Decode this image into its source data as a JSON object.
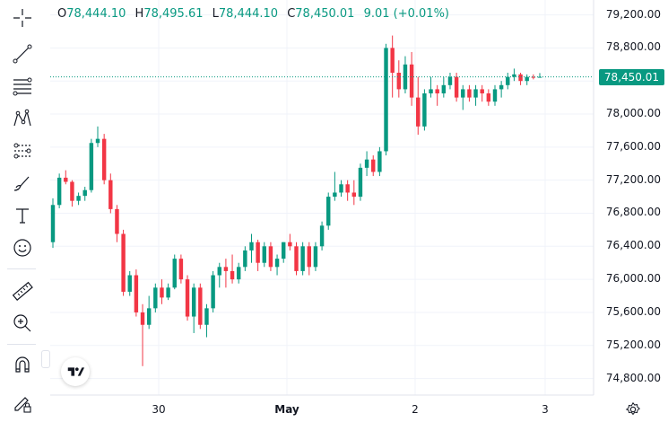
{
  "ohlc": {
    "o_key": "O",
    "o_val": "78,444.10",
    "h_key": "H",
    "h_val": "78,495.61",
    "l_key": "L",
    "l_val": "78,444.10",
    "c_key": "C",
    "c_val": "78,450.01",
    "change": "9.01 (+0.01%)"
  },
  "colors": {
    "up": "#089981",
    "down": "#f23645",
    "grid": "#f0f3fa"
  },
  "toolbar": [
    "crosshair-icon",
    "trend-line-icon",
    "fib-retracement-icon",
    "pattern-icon",
    "forecast-icon",
    "brush-icon",
    "text-icon",
    "emoji-icon",
    "ruler-icon",
    "zoom-in-icon",
    "magnet-icon",
    "lock-draw-icon"
  ],
  "last_price": "78,450.01",
  "chart_data": {
    "type": "candlestick",
    "y_ticks": [
      79200,
      78800,
      78400,
      78000,
      77600,
      77200,
      76800,
      76400,
      76000,
      75600,
      75200,
      74800
    ],
    "y_tick_labels": [
      "79,200.00",
      "78,800.00",
      "78,400.00",
      "78,000.00",
      "77,600.00",
      "77,200.00",
      "76,800.00",
      "76,400.00",
      "76,000.00",
      "75,600.00",
      "75,200.00",
      "74,800.00"
    ],
    "ylim": [
      74600,
      79380
    ],
    "x_tick_labels": [
      "30",
      "May",
      "2",
      "3"
    ],
    "last_value": 78450.01,
    "candles": [
      [
        76450,
        76980,
        76380,
        76900
      ],
      [
        76900,
        77280,
        76860,
        77230
      ],
      [
        77230,
        77320,
        77150,
        77180
      ],
      [
        77180,
        77200,
        76880,
        76950
      ],
      [
        76950,
        77050,
        76900,
        77010
      ],
      [
        77010,
        77120,
        76950,
        77080
      ],
      [
        77080,
        77700,
        77050,
        77650
      ],
      [
        77650,
        77850,
        77600,
        77700
      ],
      [
        77700,
        77760,
        77150,
        77200
      ],
      [
        77200,
        77280,
        76800,
        76850
      ],
      [
        76850,
        76900,
        76450,
        76550
      ],
      [
        76550,
        76600,
        75800,
        75850
      ],
      [
        75850,
        76100,
        75800,
        76050
      ],
      [
        76050,
        76120,
        75550,
        75600
      ],
      [
        75600,
        75700,
        74950,
        75450
      ],
      [
        75450,
        75800,
        75400,
        75650
      ],
      [
        75650,
        75950,
        75600,
        75900
      ],
      [
        75900,
        76000,
        75700,
        75780
      ],
      [
        75780,
        75950,
        75750,
        75900
      ],
      [
        75900,
        76300,
        75880,
        76250
      ],
      [
        76250,
        76300,
        75950,
        76000
      ],
      [
        76000,
        76050,
        75500,
        75550
      ],
      [
        75550,
        75950,
        75350,
        75900
      ],
      [
        75900,
        75950,
        75400,
        75450
      ],
      [
        75450,
        75700,
        75300,
        75650
      ],
      [
        75650,
        76100,
        75600,
        76050
      ],
      [
        76050,
        76200,
        75900,
        76150
      ],
      [
        76150,
        76250,
        75900,
        76100
      ],
      [
        76100,
        76300,
        75950,
        76000
      ],
      [
        76000,
        76200,
        75950,
        76150
      ],
      [
        76150,
        76400,
        76100,
        76350
      ],
      [
        76350,
        76550,
        76200,
        76450
      ],
      [
        76450,
        76480,
        76100,
        76200
      ],
      [
        76200,
        76450,
        76150,
        76400
      ],
      [
        76400,
        76450,
        76100,
        76150
      ],
      [
        76150,
        76300,
        76050,
        76250
      ],
      [
        76250,
        76450,
        76200,
        76450
      ],
      [
        76450,
        76550,
        76350,
        76400
      ],
      [
        76400,
        76450,
        76050,
        76100
      ],
      [
        76100,
        76450,
        76050,
        76400
      ],
      [
        76400,
        76450,
        76050,
        76150
      ],
      [
        76150,
        76450,
        76100,
        76400
      ],
      [
        76400,
        76700,
        76350,
        76650
      ],
      [
        76650,
        77050,
        76600,
        77000
      ],
      [
        77000,
        77300,
        76950,
        77050
      ],
      [
        77050,
        77200,
        77000,
        77150
      ],
      [
        77150,
        77200,
        76950,
        77050
      ],
      [
        77050,
        77200,
        76900,
        77000
      ],
      [
        77000,
        77400,
        76950,
        77350
      ],
      [
        77350,
        77550,
        77250,
        77450
      ],
      [
        77450,
        77500,
        77250,
        77300
      ],
      [
        77300,
        77600,
        77250,
        77550
      ],
      [
        77550,
        78850,
        77500,
        78800
      ],
      [
        78800,
        78950,
        78200,
        78500
      ],
      [
        78500,
        78650,
        78200,
        78300
      ],
      [
        78300,
        78700,
        78250,
        78600
      ],
      [
        78600,
        78750,
        78100,
        78200
      ],
      [
        78200,
        78450,
        77750,
        77850
      ],
      [
        77850,
        78300,
        77800,
        78250
      ],
      [
        78250,
        78450,
        78200,
        78300
      ],
      [
        78300,
        78350,
        78100,
        78250
      ],
      [
        78250,
        78450,
        78200,
        78350
      ],
      [
        78350,
        78500,
        78300,
        78450
      ],
      [
        78450,
        78500,
        78150,
        78200
      ],
      [
        78200,
        78350,
        78050,
        78300
      ],
      [
        78300,
        78350,
        78150,
        78200
      ],
      [
        78200,
        78350,
        78100,
        78300
      ],
      [
        78300,
        78350,
        78150,
        78250
      ],
      [
        78250,
        78300,
        78100,
        78150
      ],
      [
        78150,
        78350,
        78100,
        78300
      ],
      [
        78300,
        78400,
        78200,
        78350
      ],
      [
        78350,
        78500,
        78300,
        78450
      ],
      [
        78450,
        78550,
        78400,
        78480
      ],
      [
        78480,
        78500,
        78350,
        78400
      ],
      [
        78400,
        78480,
        78350,
        78450
      ],
      [
        78450,
        78480,
        78420,
        78440
      ],
      [
        78444.1,
        78495.61,
        78444.1,
        78450.01
      ]
    ]
  }
}
